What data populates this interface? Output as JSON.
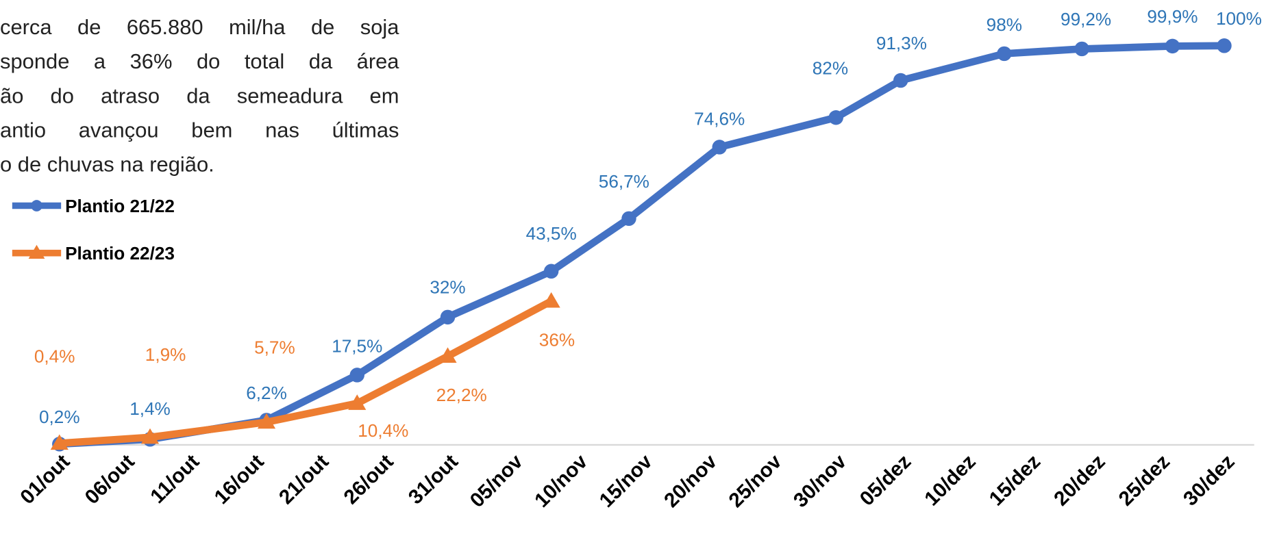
{
  "text": {
    "lines": [
      "cerca de 665.880  mil/ha de soja",
      "sponde a 36% do total da área",
      "ão do atraso da semeadura em",
      "antio avançou bem nas últimas",
      "o de chuvas na região."
    ]
  },
  "chart_data": {
    "type": "line",
    "xlim": [
      0,
      92
    ],
    "ylim": [
      0,
      100
    ],
    "xticks": [
      {
        "value": 0,
        "label": "01/out"
      },
      {
        "value": 5,
        "label": "06/out"
      },
      {
        "value": 10,
        "label": "11/out"
      },
      {
        "value": 15,
        "label": "16/out"
      },
      {
        "value": 20,
        "label": "21/out"
      },
      {
        "value": 25,
        "label": "26/out"
      },
      {
        "value": 30,
        "label": "31/out"
      },
      {
        "value": 35,
        "label": "05/nov"
      },
      {
        "value": 40,
        "label": "10/nov"
      },
      {
        "value": 45,
        "label": "15/nov"
      },
      {
        "value": 50,
        "label": "20/nov"
      },
      {
        "value": 55,
        "label": "25/nov"
      },
      {
        "value": 60,
        "label": "30/nov"
      },
      {
        "value": 65,
        "label": "05/dez"
      },
      {
        "value": 70,
        "label": "10/dez"
      },
      {
        "value": 75,
        "label": "15/dez"
      },
      {
        "value": 80,
        "label": "20/dez"
      },
      {
        "value": 85,
        "label": "25/dez"
      },
      {
        "value": 90,
        "label": "30/dez"
      }
    ],
    "series": [
      {
        "name": "Plantio 21/22",
        "color": "#4472c4",
        "marker": "circle",
        "x": [
          0,
          7,
          16,
          23,
          30,
          38,
          44,
          51,
          60,
          65,
          73,
          79,
          86,
          90
        ],
        "values": [
          0.2,
          1.4,
          6.2,
          17.5,
          32,
          43.5,
          56.7,
          74.6,
          82,
          91.3,
          98,
          99.2,
          99.9,
          100
        ],
        "value_labels": [
          "0,2%",
          "1,4%",
          "6,2%",
          "17,5%",
          "32%",
          "43,5%",
          "56,7%",
          "74,6%",
          "82%",
          "91,3%",
          "98%",
          "99,2%",
          "99,9%",
          "100%"
        ]
      },
      {
        "name": "Plantio 22/23",
        "color": "#ed7d31",
        "marker": "triangle",
        "x": [
          0,
          7,
          16,
          23,
          30,
          38
        ],
        "values": [
          0.4,
          1.9,
          5.7,
          10.4,
          22.2,
          36
        ],
        "value_labels": [
          "0,4%",
          "1,9%",
          "5,7%",
          "10,4%",
          "22,2%",
          "36%"
        ]
      }
    ]
  }
}
